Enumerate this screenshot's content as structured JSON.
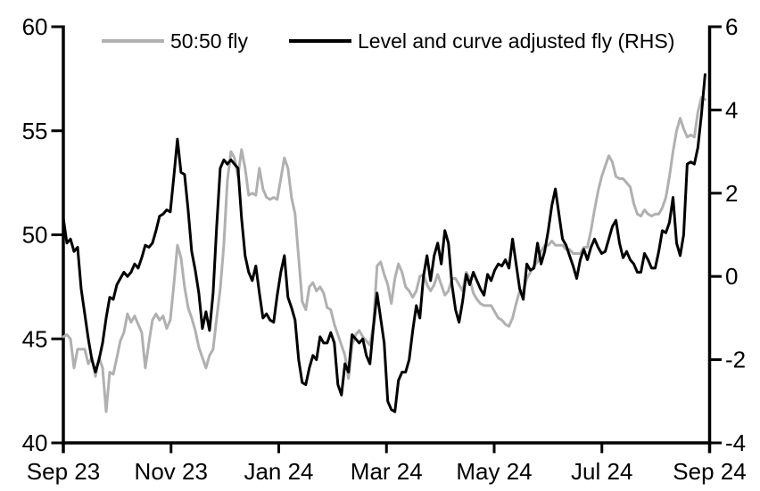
{
  "chart_data": {
    "type": "line",
    "title": "",
    "legend_position": "top",
    "grid": false,
    "legend": [
      {
        "label": "50:50 fly",
        "color": "#b0b0b0",
        "axis": "left"
      },
      {
        "label": "Level and curve adjusted fly (RHS)",
        "color": "#000000",
        "axis": "right"
      }
    ],
    "x_axis": {
      "tick_labels": [
        "Sep 23",
        "Nov 23",
        "Jan 24",
        "Mar 24",
        "May 24",
        "Jul 24",
        "Sep 24"
      ]
    },
    "left_axis": {
      "min": 40,
      "max": 60,
      "tick_labels": [
        "60",
        "55",
        "50",
        "45",
        "40"
      ],
      "tick_values": [
        60,
        55,
        50,
        45,
        40
      ]
    },
    "right_axis": {
      "min": -4,
      "max": 6,
      "tick_labels": [
        "6",
        "4",
        "2",
        "0",
        "-2",
        "-4"
      ],
      "tick_values": [
        6,
        4,
        2,
        0,
        -2,
        -4
      ]
    },
    "series": [
      {
        "name": "50:50 fly",
        "axis": "left",
        "color": "#b0b0b0",
        "t_start": 0.0,
        "t_end": 0.993,
        "values": [
          45.1,
          45.2,
          45.0,
          43.6,
          44.5,
          44.5,
          44.5,
          43.8,
          44.1,
          43.2,
          44.1,
          43.6,
          41.5,
          43.4,
          43.3,
          44.1,
          44.9,
          45.3,
          46.2,
          45.8,
          46.1,
          45.7,
          45.3,
          43.6,
          44.8,
          45.9,
          46.2,
          45.9,
          46.1,
          45.5,
          45.9,
          47.6,
          49.5,
          48.9,
          47.5,
          46.5,
          46.0,
          45.4,
          44.6,
          44.1,
          43.6,
          44.2,
          44.5,
          46.0,
          47.4,
          49.5,
          52.6,
          54.0,
          53.7,
          52.8,
          54.1,
          53.2,
          51.9,
          52.0,
          51.9,
          53.2,
          52.2,
          51.8,
          51.7,
          51.8,
          51.7,
          52.7,
          53.7,
          53.2,
          51.8,
          51.0,
          48.9,
          46.8,
          46.4,
          47.5,
          47.7,
          47.3,
          47.5,
          47.2,
          46.5,
          46.4,
          45.7,
          45.2,
          44.7,
          44.2,
          43.1,
          44.7,
          45.2,
          45.4,
          45.1,
          44.9,
          44.7,
          45.7,
          48.5,
          48.7,
          48.1,
          47.6,
          46.7,
          47.9,
          48.6,
          48.2,
          47.5,
          47.3,
          47.0,
          47.3,
          48.0,
          48.1,
          47.6,
          47.3,
          47.6,
          48.1,
          47.6,
          47.1,
          47.3,
          47.9,
          47.9,
          47.6,
          47.3,
          48.2,
          47.9,
          47.2,
          46.9,
          46.7,
          46.6,
          46.6,
          46.6,
          46.3,
          46.0,
          45.9,
          45.7,
          45.6,
          46.0,
          46.7,
          47.3,
          47.3,
          47.9,
          48.2,
          48.5,
          48.7,
          49.2,
          49.5,
          49.5,
          49.7,
          49.5,
          49.5,
          49.5,
          49.3,
          49.3,
          49.1,
          49.1,
          49.1,
          49.4,
          49.4,
          50.2,
          51.2,
          52.1,
          52.8,
          53.3,
          53.8,
          53.5,
          52.8,
          52.7,
          52.7,
          52.5,
          52.3,
          51.5,
          51.0,
          50.9,
          51.2,
          51.0,
          50.9,
          51.0,
          51.0,
          51.3,
          51.8,
          52.8,
          54.0,
          55.0,
          55.6,
          55.1,
          54.7,
          54.8,
          54.7,
          55.9,
          56.6,
          56.5
        ]
      },
      {
        "name": "Level and curve adjusted fly (RHS)",
        "axis": "right",
        "color": "#000000",
        "t_start": 0.0,
        "t_end": 0.993,
        "values": [
          1.4,
          0.8,
          0.9,
          0.6,
          0.7,
          -0.3,
          -0.9,
          -1.5,
          -2.0,
          -2.3,
          -2.0,
          -1.6,
          -1.0,
          -0.5,
          -0.55,
          -0.2,
          -0.05,
          0.1,
          0.0,
          0.1,
          0.3,
          0.2,
          0.45,
          0.75,
          0.7,
          0.8,
          1.1,
          1.45,
          1.5,
          1.6,
          1.55,
          2.4,
          3.3,
          2.5,
          2.45,
          1.6,
          0.6,
          0.15,
          -0.4,
          -1.25,
          -0.85,
          -1.3,
          -0.4,
          1.2,
          2.6,
          2.8,
          2.7,
          2.8,
          2.7,
          2.6,
          1.4,
          0.5,
          0.1,
          -0.1,
          0.25,
          -0.4,
          -1.0,
          -0.9,
          -1.05,
          -1.1,
          -0.45,
          0.1,
          0.5,
          -0.5,
          -0.75,
          -1.05,
          -2.0,
          -2.55,
          -2.6,
          -2.2,
          -1.9,
          -2.0,
          -1.45,
          -1.6,
          -1.6,
          -1.35,
          -1.6,
          -2.6,
          -2.85,
          -2.1,
          -2.3,
          -1.4,
          -1.5,
          -1.6,
          -1.5,
          -1.9,
          -2.1,
          -1.2,
          -0.4,
          -1.0,
          -1.6,
          -3.0,
          -3.2,
          -3.25,
          -2.5,
          -2.3,
          -2.3,
          -2.0,
          -1.3,
          -0.7,
          -1.0,
          0.0,
          0.5,
          -0.1,
          0.5,
          0.8,
          0.3,
          1.1,
          0.8,
          -0.2,
          -0.8,
          -1.1,
          -0.6,
          0.05,
          -0.2,
          0.1,
          -0.1,
          -0.3,
          -0.45,
          0.05,
          -0.1,
          0.15,
          0.3,
          0.25,
          0.4,
          0.2,
          0.9,
          0.3,
          -0.3,
          -0.55,
          0.3,
          0.15,
          0.2,
          0.8,
          0.3,
          0.6,
          1.1,
          1.7,
          2.1,
          1.5,
          0.9,
          0.75,
          0.5,
          0.25,
          -0.05,
          0.4,
          0.65,
          0.4,
          0.7,
          0.9,
          0.7,
          0.55,
          0.6,
          0.9,
          1.2,
          1.35,
          0.8,
          0.45,
          0.6,
          0.4,
          0.3,
          0.1,
          0.1,
          0.55,
          0.4,
          0.2,
          0.2,
          0.6,
          1.1,
          1.05,
          1.3,
          1.9,
          0.8,
          0.5,
          1.0,
          2.7,
          2.75,
          2.7,
          3.1,
          3.9,
          4.85
        ]
      }
    ]
  }
}
